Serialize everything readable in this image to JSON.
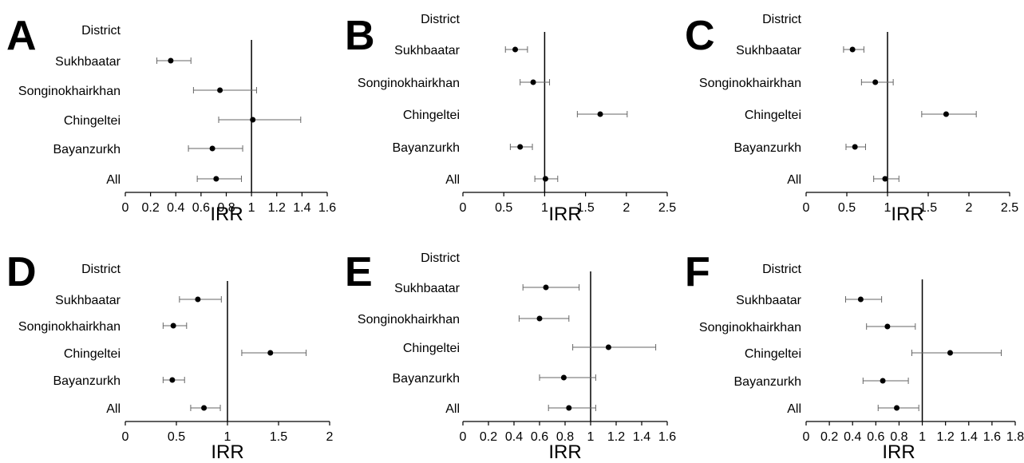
{
  "chart_data": [
    {
      "panel": "A",
      "type": "scatter",
      "header": "District",
      "xlabel": "IRR",
      "xlim": [
        0,
        1.6
      ],
      "ticks": [
        0,
        0.2,
        0.4,
        0.6,
        0.8,
        1,
        1.2,
        1.4,
        1.6
      ],
      "tick_labels": [
        "0",
        "0.2",
        "0.4",
        "0.6",
        "0.8",
        "1",
        "1.2",
        "1.4",
        "1.6"
      ],
      "ref_line": 1,
      "rows": [
        {
          "district": "Sukhbaatar",
          "irr": 0.36,
          "low": 0.25,
          "high": 0.52
        },
        {
          "district": "Songinokhairkhan",
          "irr": 0.75,
          "low": 0.54,
          "high": 1.04
        },
        {
          "district": "Chingeltei",
          "irr": 1.01,
          "low": 0.74,
          "high": 1.39
        },
        {
          "district": "Bayanzurkh",
          "irr": 0.69,
          "low": 0.5,
          "high": 0.93
        },
        {
          "district": "All",
          "irr": 0.72,
          "low": 0.57,
          "high": 0.92
        }
      ]
    },
    {
      "panel": "B",
      "type": "scatter",
      "header": "District",
      "xlabel": "IRR",
      "xlim": [
        0,
        2.5
      ],
      "ticks": [
        0,
        0.5,
        1,
        1.5,
        2,
        2.5
      ],
      "tick_labels": [
        "0",
        "0.5",
        "1",
        "1.5",
        "2",
        "2.5"
      ],
      "ref_line": 1,
      "rows": [
        {
          "district": "Sukhbaatar",
          "irr": 0.64,
          "low": 0.52,
          "high": 0.79
        },
        {
          "district": "Songinokhairkhan",
          "irr": 0.86,
          "low": 0.7,
          "high": 1.06
        },
        {
          "district": "Chingeltei",
          "irr": 1.68,
          "low": 1.4,
          "high": 2.01
        },
        {
          "district": "Bayanzurkh",
          "irr": 0.7,
          "low": 0.58,
          "high": 0.85
        },
        {
          "district": "All",
          "irr": 1.01,
          "low": 0.88,
          "high": 1.16
        }
      ]
    },
    {
      "panel": "C",
      "type": "scatter",
      "header": "District",
      "xlabel": "IRR",
      "xlim": [
        0,
        2.5
      ],
      "ticks": [
        0,
        0.5,
        1,
        1.5,
        2,
        2.5
      ],
      "tick_labels": [
        "0",
        "0.5",
        "1",
        "1.5",
        "2",
        "2.5"
      ],
      "ref_line": 1,
      "rows": [
        {
          "district": "Sukhbaatar",
          "irr": 0.57,
          "low": 0.46,
          "high": 0.71
        },
        {
          "district": "Songinokhairkhan",
          "irr": 0.85,
          "low": 0.68,
          "high": 1.07
        },
        {
          "district": "Chingeltei",
          "irr": 1.72,
          "low": 1.42,
          "high": 2.09
        },
        {
          "district": "Bayanzurkh",
          "irr": 0.6,
          "low": 0.49,
          "high": 0.73
        },
        {
          "district": "All",
          "irr": 0.97,
          "low": 0.83,
          "high": 1.14
        }
      ]
    },
    {
      "panel": "D",
      "type": "scatter",
      "header": "District",
      "xlabel": "IRR",
      "xlim": [
        0,
        2
      ],
      "ticks": [
        0,
        0.5,
        1,
        1.5,
        2
      ],
      "tick_labels": [
        "0",
        "0.5",
        "1",
        "1.5",
        "2"
      ],
      "ref_line": 1,
      "rows": [
        {
          "district": "Sukhbaatar",
          "irr": 0.71,
          "low": 0.53,
          "high": 0.94
        },
        {
          "district": "Songinokhairkhan",
          "irr": 0.47,
          "low": 0.37,
          "high": 0.6
        },
        {
          "district": "Chingeltei",
          "irr": 1.42,
          "low": 1.14,
          "high": 1.77
        },
        {
          "district": "Bayanzurkh",
          "irr": 0.46,
          "low": 0.37,
          "high": 0.58
        },
        {
          "district": "All",
          "irr": 0.77,
          "low": 0.64,
          "high": 0.93
        }
      ]
    },
    {
      "panel": "E",
      "type": "scatter",
      "header": "District",
      "xlabel": "IRR",
      "xlim": [
        0,
        1.6
      ],
      "ticks": [
        0,
        0.2,
        0.4,
        0.6,
        0.8,
        1,
        1.2,
        1.4,
        1.6
      ],
      "tick_labels": [
        "0",
        "0.2",
        "0.4",
        "0.6",
        "0.8",
        "1",
        "1.2",
        "1.4",
        "1.6"
      ],
      "ref_line": 1,
      "rows": [
        {
          "district": "Sukhbaatar",
          "irr": 0.65,
          "low": 0.47,
          "high": 0.91
        },
        {
          "district": "Songinokhairkhan",
          "irr": 0.6,
          "low": 0.44,
          "high": 0.83
        },
        {
          "district": "Chingeltei",
          "irr": 1.14,
          "low": 0.86,
          "high": 1.51
        },
        {
          "district": "Bayanzurkh",
          "irr": 0.79,
          "low": 0.6,
          "high": 1.04
        },
        {
          "district": "All",
          "irr": 0.83,
          "low": 0.67,
          "high": 1.04
        }
      ]
    },
    {
      "panel": "F",
      "type": "scatter",
      "header": "District",
      "xlabel": "IRR",
      "xlim": [
        0,
        1.8
      ],
      "ticks": [
        0,
        0.2,
        0.4,
        0.6,
        0.8,
        1,
        1.2,
        1.4,
        1.6,
        1.8
      ],
      "tick_labels": [
        "0",
        "0.2",
        "0.4",
        "0.6",
        "0.8",
        "1",
        "1.2",
        "1.4",
        "1.6",
        "1.8"
      ],
      "ref_line": 1,
      "rows": [
        {
          "district": "Sukhbaatar",
          "irr": 0.47,
          "low": 0.34,
          "high": 0.65
        },
        {
          "district": "Songinokhairkhan",
          "irr": 0.7,
          "low": 0.52,
          "high": 0.94
        },
        {
          "district": "Chingeltei",
          "irr": 1.24,
          "low": 0.91,
          "high": 1.68
        },
        {
          "district": "Bayanzurkh",
          "irr": 0.66,
          "low": 0.49,
          "high": 0.88
        },
        {
          "district": "All",
          "irr": 0.78,
          "low": 0.62,
          "high": 0.97
        }
      ]
    }
  ]
}
